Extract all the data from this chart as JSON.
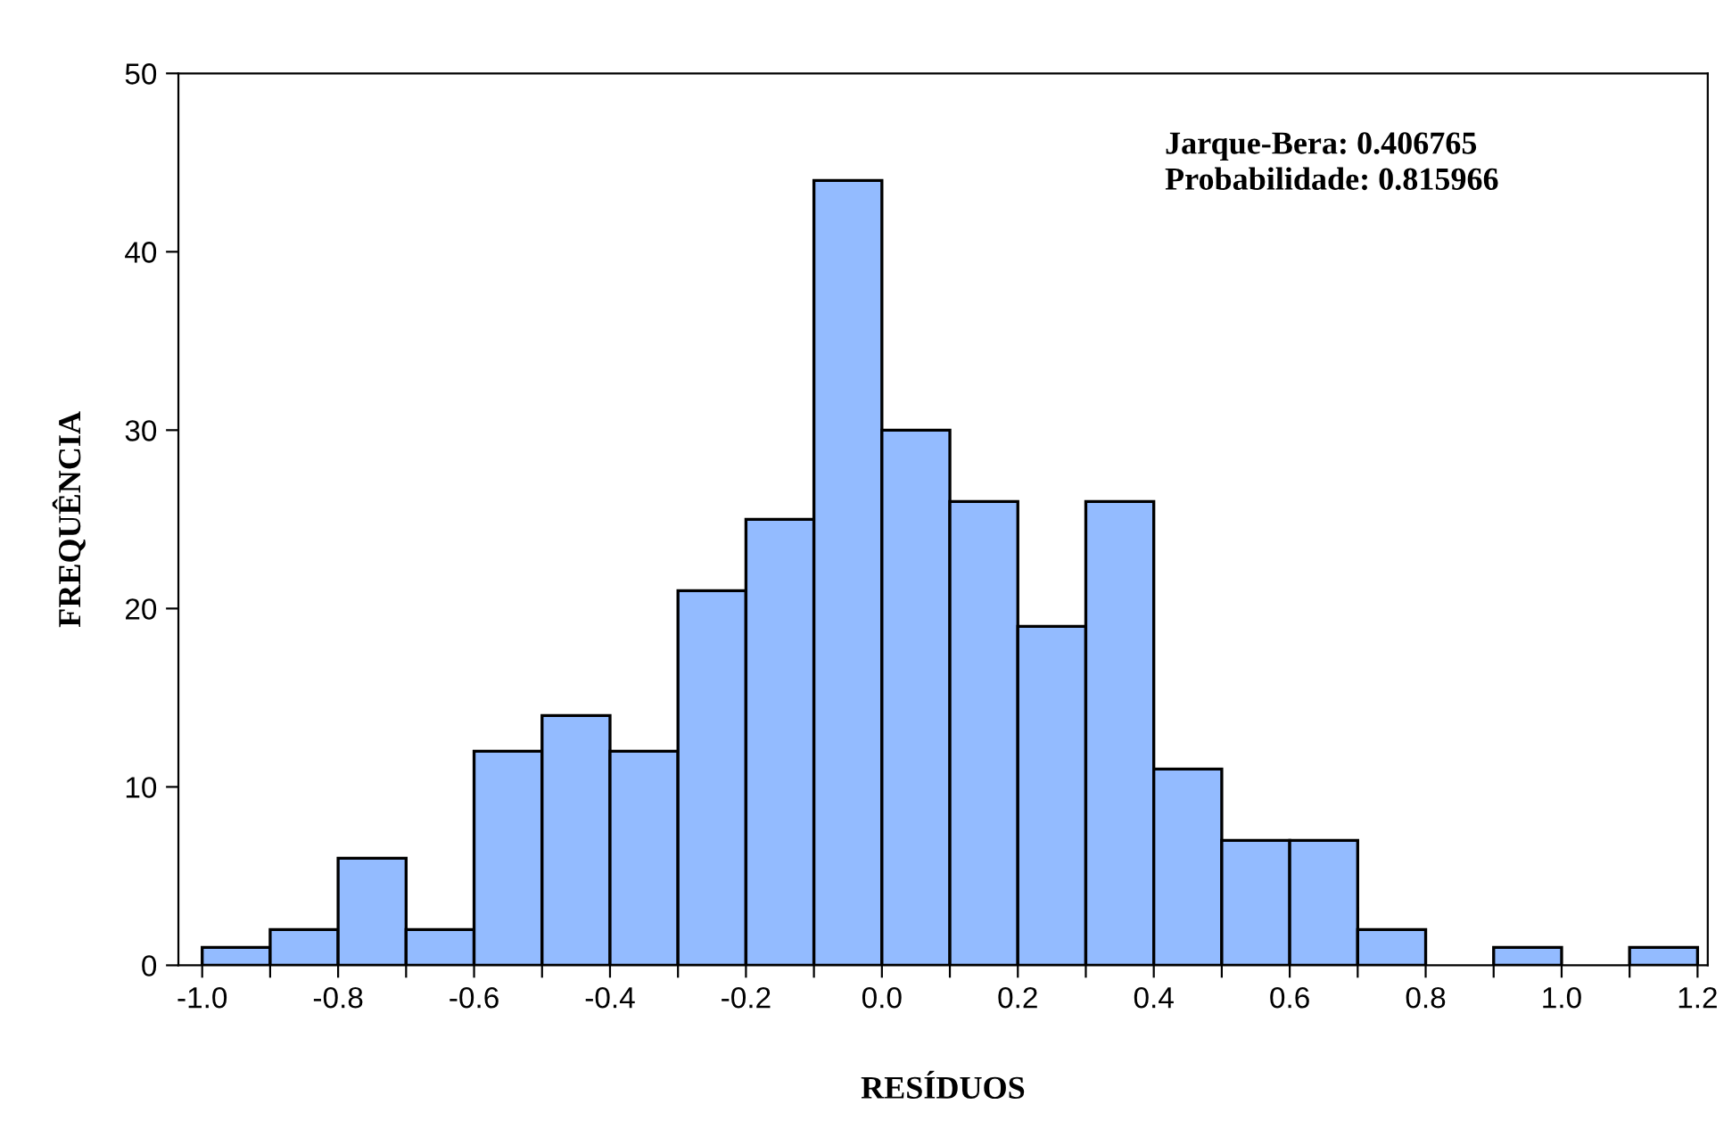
{
  "chart_data": {
    "type": "histogram",
    "xlabel": "RESÍDUOS",
    "ylabel": "FREQUÊNCIA",
    "bins": [
      -1.0,
      -0.9,
      -0.8,
      -0.7,
      -0.6,
      -0.5,
      -0.4,
      -0.3,
      -0.2,
      -0.1,
      0.0,
      0.1,
      0.2,
      0.3,
      0.4,
      0.5,
      0.6,
      0.7,
      0.8,
      0.9,
      1.0,
      1.1,
      1.2
    ],
    "values": [
      1,
      2,
      6,
      2,
      12,
      14,
      12,
      21,
      25,
      44,
      30,
      26,
      19,
      26,
      11,
      7,
      7,
      2,
      0,
      1,
      0,
      1
    ],
    "color": "#93bbff",
    "xlim": [
      -1.035,
      1.215
    ],
    "xticks": [
      {
        "value": -1.0,
        "label": "-1.0"
      },
      {
        "value": -0.9,
        "label": null
      },
      {
        "value": -0.8,
        "label": "-0.8"
      },
      {
        "value": -0.7,
        "label": null
      },
      {
        "value": -0.6,
        "label": "-0.6"
      },
      {
        "value": -0.5,
        "label": null
      },
      {
        "value": -0.4,
        "label": "-0.4"
      },
      {
        "value": -0.3,
        "label": null
      },
      {
        "value": -0.2,
        "label": "-0.2"
      },
      {
        "value": -0.1,
        "label": null
      },
      {
        "value": 0.0,
        "label": "0.0"
      },
      {
        "value": 0.1,
        "label": null
      },
      {
        "value": 0.2,
        "label": "0.2"
      },
      {
        "value": 0.3,
        "label": null
      },
      {
        "value": 0.4,
        "label": "0.4"
      },
      {
        "value": 0.5,
        "label": null
      },
      {
        "value": 0.6,
        "label": "0.6"
      },
      {
        "value": 0.7,
        "label": null
      },
      {
        "value": 0.8,
        "label": "0.8"
      },
      {
        "value": 0.9,
        "label": null
      },
      {
        "value": 1.0,
        "label": "1.0"
      },
      {
        "value": 1.1,
        "label": null
      },
      {
        "value": 1.2,
        "label": "1.2"
      }
    ],
    "ylim": [
      0,
      50
    ],
    "yticks": [
      0,
      10,
      20,
      30,
      40,
      50
    ],
    "grid": false,
    "annotations": [
      "Jarque-Bera: 0.406765\nProbabilidade: 0.815966"
    ]
  }
}
